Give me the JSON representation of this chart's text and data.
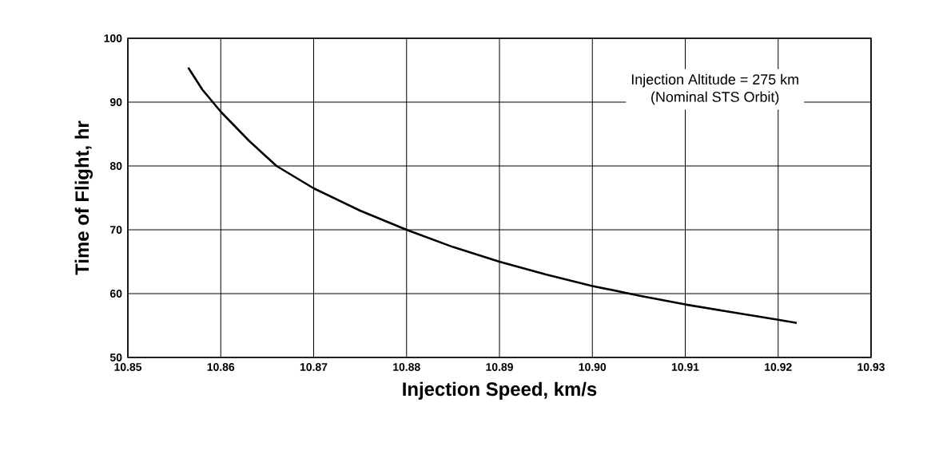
{
  "chart_data": {
    "type": "line",
    "xlabel": "Injection Speed, km/s",
    "ylabel": "Time of Flight, hr",
    "annotations": [
      "Injection Altitude = 275 km",
      "(Nominal STS Orbit)"
    ],
    "x": [
      10.8565,
      10.858,
      10.86,
      10.863,
      10.866,
      10.87,
      10.875,
      10.88,
      10.885,
      10.89,
      10.895,
      10.9,
      10.905,
      10.91,
      10.915,
      10.92,
      10.922
    ],
    "series": [
      {
        "color": "#000000",
        "values": [
          95.4,
          92,
          88.5,
          84,
          80,
          76.5,
          73,
          70,
          67.3,
          65,
          63,
          61.2,
          59.7,
          58.3,
          57.1,
          55.9,
          55.4
        ]
      }
    ],
    "xlim": [
      10.85,
      10.93
    ],
    "ylim": [
      50,
      100
    ],
    "xticks": [
      {
        "value": 10.85,
        "label": "10.85"
      },
      {
        "value": 10.86,
        "label": "10.86"
      },
      {
        "value": 10.87,
        "label": "10.87"
      },
      {
        "value": 10.88,
        "label": "10.88"
      },
      {
        "value": 10.89,
        "label": "10.89"
      },
      {
        "value": 10.9,
        "label": "10.90"
      },
      {
        "value": 10.91,
        "label": "10.91"
      },
      {
        "value": 10.92,
        "label": "10.92"
      },
      {
        "value": 10.93,
        "label": "10.93"
      }
    ],
    "yticks": [
      50,
      60,
      70,
      80,
      90,
      100
    ],
    "grid": true,
    "marker": "none",
    "line_style": "solid"
  }
}
